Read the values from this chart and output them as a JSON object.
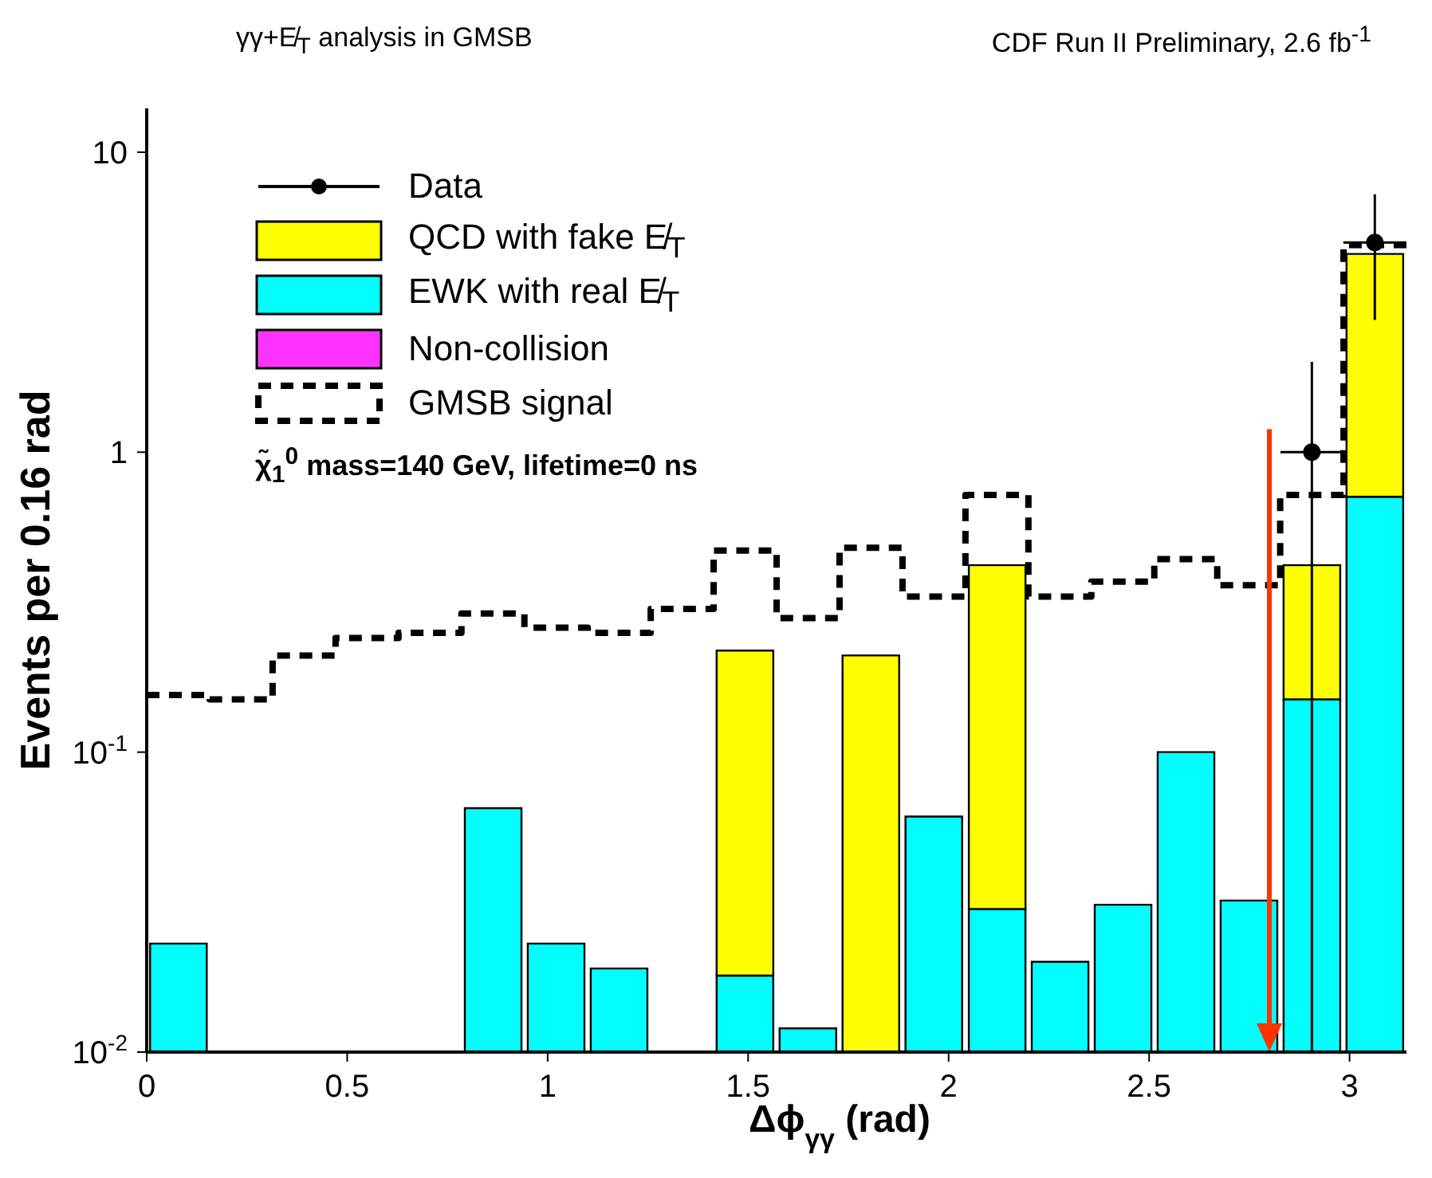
{
  "chart_data": {
    "type": "bar",
    "title": "γγ+E̸$_{T}$ analysis in GMSB",
    "subtitle": "CDF Run II Preliminary, 2.6 fb$^{-1}$",
    "xlabel": "Δϕ$_{γγ}$ (rad)",
    "ylabel": "Events per 0.16 rad",
    "annotations": [
      "χ̃$_{1}$$^{0}$ mass=140 GeV, lifetime=0 ns"
    ],
    "x": [
      0.079,
      0.236,
      0.393,
      0.55,
      0.707,
      0.864,
      1.021,
      1.178,
      1.335,
      1.492,
      1.649,
      1.806,
      1.963,
      2.121,
      2.278,
      2.435,
      2.592,
      2.749,
      2.906,
      3.063
    ],
    "stacked": true,
    "log": true,
    "legend": "top left",
    "xlim": [
      0,
      3.142
    ],
    "xticks": [
      0,
      0.5,
      1,
      1.5,
      2,
      2.5,
      3
    ],
    "ylim": [
      0.01,
      14
    ],
    "yticks": [
      {
        "value": 0.01,
        "label": "10$^{-2}$"
      },
      {
        "value": 0.1,
        "label": "10$^{-1}$"
      },
      1,
      10
    ],
    "series": [
      {
        "name": "Non-collision",
        "color": "#ff33ff",
        "values": [
          null,
          null,
          null,
          null,
          null,
          null,
          null,
          null,
          null,
          null,
          null,
          null,
          null,
          null,
          null,
          null,
          null,
          null,
          null,
          null
        ]
      },
      {
        "name": "EWK with real E̸$_{T}$",
        "color": "#00ffff",
        "values": [
          0.023,
          null,
          null,
          null,
          null,
          0.065,
          0.023,
          0.019,
          null,
          0.018,
          0.012,
          null,
          0.061,
          0.03,
          0.02,
          0.031,
          0.1,
          0.032,
          0.15,
          0.71
        ]
      },
      {
        "name": "QCD with fake E̸$_{T}$",
        "color": "#ffff00",
        "values": [
          null,
          null,
          null,
          null,
          null,
          null,
          null,
          null,
          null,
          0.2,
          null,
          0.21,
          null,
          0.39,
          null,
          null,
          null,
          null,
          0.27,
          3.87
        ]
      },
      {
        "name": "GMSB signal",
        "type": "step",
        "color": "#000000",
        "line_style": "dashed",
        "x": [
          0,
          0.157,
          0.314,
          0.471,
          0.628,
          0.785,
          0.942,
          1.1,
          1.257,
          1.414,
          1.571,
          1.728,
          1.885,
          2.042,
          2.199,
          2.356,
          2.513,
          2.67,
          2.827,
          2.985,
          3.142
        ],
        "values": [
          0.155,
          0.15,
          0.21,
          0.24,
          0.25,
          0.29,
          0.26,
          0.25,
          0.3,
          0.47,
          0.28,
          0.48,
          0.33,
          0.72,
          0.33,
          0.37,
          0.44,
          0.36,
          0.72,
          4.9,
          4.9
        ]
      },
      {
        "name": "Data",
        "type": "scatter",
        "color": "#000000",
        "marker": "circle",
        "x": [
          2.906,
          3.063
        ],
        "values": [
          1,
          5
        ],
        "errors": [
          [
            0.99,
            1
          ],
          2.24
        ],
        "xerrors": [
          0.0785,
          0.0785
        ]
      }
    ],
    "ref_lines": [
      {
        "axis": "x",
        "value": 2.8,
        "color": "#ff3300"
      }
    ]
  }
}
